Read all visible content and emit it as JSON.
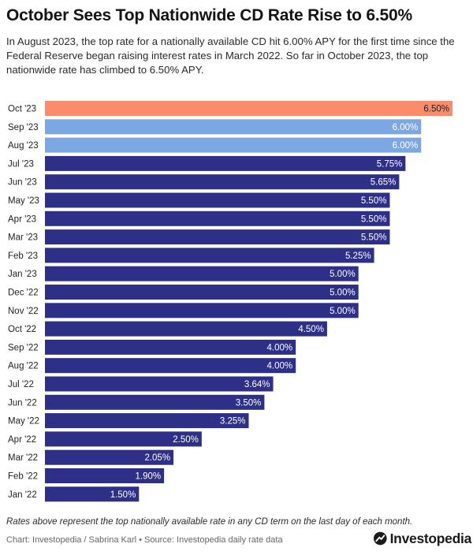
{
  "title": "October Sees Top Nationwide CD Rate Rise to 6.50%",
  "subtitle": "In August 2023, the top rate for a nationally available CD hit 6.00% APY for the first time since the Federal Reserve began raising interest rates in March 2022. So far in October 2023, the top nationwide rate has climbed to 6.50% APY.",
  "note": "Rates above represent the top nationally available rate in any CD term on the last day of each month.",
  "source": "Chart: Investopedia / Sabrina Karl • Source: Investopedia daily rate data",
  "brand": {
    "name": "Investopedia",
    "icon": "investopedia-logo-icon"
  },
  "colors": {
    "highlight": "#FA8C6C",
    "recent": "#7BA8E2",
    "base": "#2E2F86"
  },
  "chart_data": {
    "type": "bar",
    "orientation": "horizontal",
    "title": "",
    "xlabel": "",
    "ylabel": "",
    "xlim": [
      0,
      6.5
    ],
    "grid": false,
    "value_suffix": "%",
    "categories": [
      "Oct '23",
      "Sep '23",
      "Aug '23",
      "Jul '23",
      "Jun '23",
      "May '23",
      "Apr '23",
      "Mar '23",
      "Feb '23",
      "Jan '23",
      "Dec '22",
      "Nov '22",
      "Oct '22",
      "Sep '22",
      "Aug '22",
      "Jul '22",
      "Jun '22",
      "May '22",
      "Apr '22",
      "Mar '22",
      "Feb '22",
      "Jan '22"
    ],
    "values": [
      6.5,
      6.0,
      6.0,
      5.75,
      5.65,
      5.5,
      5.5,
      5.5,
      5.25,
      5.0,
      5.0,
      5.0,
      4.5,
      4.0,
      4.0,
      3.64,
      3.5,
      3.25,
      2.5,
      2.05,
      1.9,
      1.5
    ],
    "labels": [
      "6.50%",
      "6.00%",
      "6.00%",
      "5.75%",
      "5.65%",
      "5.50%",
      "5.50%",
      "5.50%",
      "5.25%",
      "5.00%",
      "5.00%",
      "5.00%",
      "4.50%",
      "4.00%",
      "4.00%",
      "3.64%",
      "3.50%",
      "3.25%",
      "2.50%",
      "2.05%",
      "1.90%",
      "1.50%"
    ],
    "bar_colors": [
      "highlight",
      "recent",
      "recent",
      "base",
      "base",
      "base",
      "base",
      "base",
      "base",
      "base",
      "base",
      "base",
      "base",
      "base",
      "base",
      "base",
      "base",
      "base",
      "base",
      "base",
      "base",
      "base"
    ]
  }
}
